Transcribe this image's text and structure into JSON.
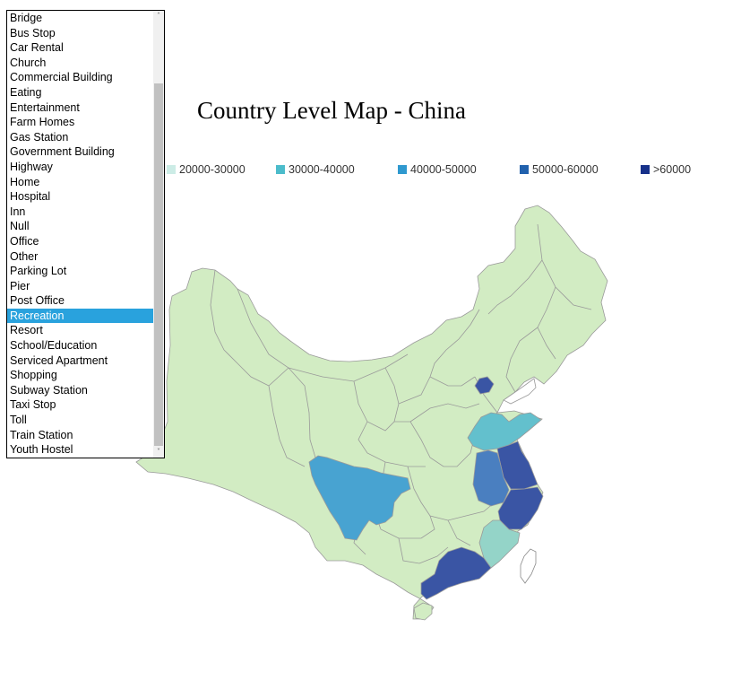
{
  "category_list": {
    "items": [
      "Bridge",
      "Bus Stop",
      "Car Rental",
      "Church",
      "Commercial Building",
      "Eating",
      "Entertainment",
      "Farm Homes",
      "Gas Station",
      "Government Building",
      "Highway",
      "Home",
      "Hospital",
      "Inn",
      "Null",
      "Office",
      "Other",
      "Parking Lot",
      "Pier",
      "Post Office",
      "Recreation",
      "Resort",
      "School/Education",
      "Serviced Apartment",
      "Shopping",
      "Subway Station",
      "Taxi Stop",
      "Toll",
      "Train Station",
      "Youth Hostel"
    ],
    "selected": "Recreation",
    "scroll_up_glyph": "˄",
    "scroll_down_glyph": "˅"
  },
  "map": {
    "title": "Country Level Map - China"
  },
  "legend": [
    {
      "label": "20000-30000",
      "color": "#ccece6"
    },
    {
      "label": "30000-40000",
      "color": "#4cbccb"
    },
    {
      "label": "40000-50000",
      "color": "#2f99cf"
    },
    {
      "label": "50000-60000",
      "color": "#2161ad"
    },
    {
      "label": ">60000",
      "color": "#17318a"
    }
  ],
  "region_colors": {
    "base": "#d2ecc3",
    "shandong": "#63c0cd",
    "sichuan": "#48a3d1",
    "anhui": "#4a7fc0",
    "jiangsu": "#3a55a4",
    "zhejiang": "#3a55a4",
    "beijing": "#3a55a4",
    "guangdong": "#3a55a4",
    "fujian": "#94d4c8"
  }
}
